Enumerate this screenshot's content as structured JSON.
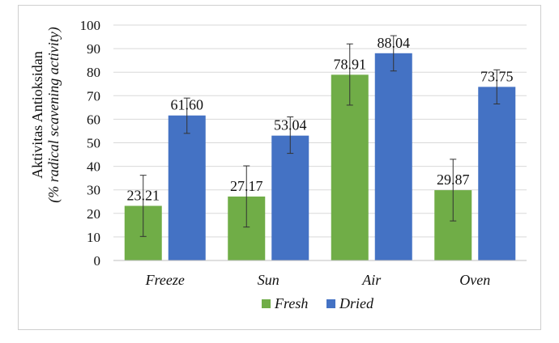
{
  "chart_data": {
    "type": "bar",
    "categories": [
      "Freeze",
      "Sun",
      "Air",
      "Oven"
    ],
    "series": [
      {
        "name": "Fresh",
        "color": "#70ad47",
        "values": [
          23.21,
          27.17,
          78.91,
          29.87
        ],
        "labels": [
          "23.21",
          "27.17",
          "78.91",
          "29.87"
        ],
        "error_low": [
          10.2,
          14.2,
          66.0,
          16.8
        ],
        "error_high": [
          36.2,
          40.2,
          92.0,
          43.0
        ]
      },
      {
        "name": "Dried",
        "color": "#4472c4",
        "values": [
          61.6,
          53.04,
          88.04,
          73.75
        ],
        "labels": [
          "61.60",
          "53.04",
          "88.04",
          "73.75"
        ],
        "error_low": [
          54.0,
          45.5,
          80.5,
          66.5
        ],
        "error_high": [
          69.0,
          61.0,
          95.5,
          81.0
        ]
      }
    ],
    "ylabel_line1": "Aktivitas Antioksidan",
    "ylabel_line2": "(% radical scavening activity)",
    "ylim": [
      0,
      100
    ],
    "yticks": [
      "0",
      "10",
      "20",
      "30",
      "40",
      "50",
      "60",
      "70",
      "80",
      "90",
      "100"
    ],
    "grid": true,
    "legend_position": "bottom"
  }
}
